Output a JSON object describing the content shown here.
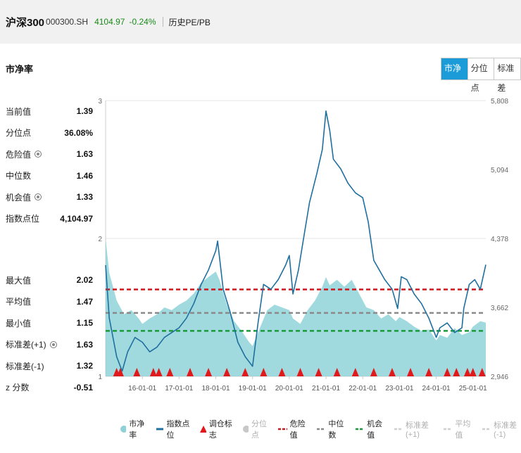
{
  "header": {
    "name": "沪深300",
    "code": "000300.SH",
    "price": "4104.97",
    "change": "-0.24%",
    "history_link": "历史PE/PB"
  },
  "section_title": "市净率",
  "tabs": [
    {
      "label": "市净率",
      "active": true
    },
    {
      "label": "分位点",
      "active": false
    },
    {
      "label": "标准差",
      "active": false
    }
  ],
  "stats_top": [
    {
      "label": "当前值",
      "value": "1.39",
      "info": false
    },
    {
      "label": "分位点",
      "value": "36.08%",
      "info": false
    },
    {
      "label": "危险值",
      "value": "1.63",
      "info": true
    },
    {
      "label": "中位数",
      "value": "1.46",
      "info": false
    },
    {
      "label": "机会值",
      "value": "1.33",
      "info": true
    },
    {
      "label": "指数点位",
      "value": "4,104.97",
      "info": false
    }
  ],
  "stats_bottom": [
    {
      "label": "最大值",
      "value": "2.02",
      "info": false
    },
    {
      "label": "平均值",
      "value": "1.47",
      "info": false
    },
    {
      "label": "最小值",
      "value": "1.15",
      "info": false
    },
    {
      "label": "标准差(+1)",
      "value": "1.63",
      "info": true
    },
    {
      "label": "标准差(-1)",
      "value": "1.32",
      "info": false
    },
    {
      "label": "z 分数",
      "value": "-0.51",
      "info": false
    }
  ],
  "legend": [
    {
      "label": "市净率",
      "kind": "dot",
      "color": "#8fd3d8",
      "active": true
    },
    {
      "label": "指数点位",
      "kind": "line",
      "color": "#1f6f9f",
      "active": true
    },
    {
      "label": "调仓标志",
      "kind": "triangle",
      "color": "#e0191c",
      "active": true
    },
    {
      "label": "分位点",
      "kind": "dot",
      "color": "#c8c8c8",
      "active": false
    },
    {
      "label": "危险值",
      "kind": "dash",
      "color": "#c9181e",
      "active": true
    },
    {
      "label": "中位数",
      "kind": "dash",
      "color": "#8a8a8a",
      "active": true
    },
    {
      "label": "机会值",
      "kind": "dash",
      "color": "#1a9a3c",
      "active": true
    },
    {
      "label": "标准差(+1)",
      "kind": "dash",
      "color": "#d0d0d0",
      "active": false
    },
    {
      "label": "平均值",
      "kind": "dash",
      "color": "#d0d0d0",
      "active": false
    },
    {
      "label": "标准差(-1)",
      "kind": "dash",
      "color": "#d0d0d0",
      "active": false
    }
  ],
  "chart_data": {
    "type": "area",
    "x_tick_labels": [
      "16-01-01",
      "17-01-01",
      "18-01-01",
      "19-01-01",
      "20-01-01",
      "21-01-01",
      "22-01-01",
      "23-01-01",
      "24-01-01",
      "25-01-01"
    ],
    "x_range": [
      2015.0,
      2025.35
    ],
    "left_axis": {
      "ticks": [
        "1",
        "2",
        "3"
      ],
      "range": [
        1,
        3
      ]
    },
    "right_axis": {
      "ticks": [
        "2,946",
        "3,662",
        "4,378",
        "5,094",
        "5,808"
      ],
      "range": [
        2946,
        5808
      ]
    },
    "reference_lines": [
      {
        "name": "危险值",
        "value": 1.63,
        "color": "#c9181e"
      },
      {
        "name": "中位数",
        "value": 1.46,
        "color": "#8a8a8a"
      },
      {
        "name": "机会值",
        "value": 1.33,
        "color": "#1a9a3c"
      }
    ],
    "series": [
      {
        "name": "市净率",
        "kind": "area",
        "color": "#8fd3d8",
        "x": [
          2015.0,
          2015.1,
          2015.3,
          2015.5,
          2015.7,
          2015.9,
          2016.0,
          2016.2,
          2016.4,
          2016.6,
          2016.8,
          2017.0,
          2017.2,
          2017.4,
          2017.6,
          2017.8,
          2018.0,
          2018.1,
          2018.3,
          2018.5,
          2018.7,
          2018.9,
          2019.0,
          2019.2,
          2019.4,
          2019.6,
          2019.8,
          2020.0,
          2020.1,
          2020.3,
          2020.5,
          2020.7,
          2020.9,
          2021.0,
          2021.1,
          2021.3,
          2021.5,
          2021.7,
          2021.9,
          2022.1,
          2022.3,
          2022.5,
          2022.7,
          2022.9,
          2023.0,
          2023.2,
          2023.4,
          2023.6,
          2023.8,
          2024.0,
          2024.1,
          2024.3,
          2024.5,
          2024.7,
          2024.9,
          2025.0,
          2025.2,
          2025.35
        ],
        "values": [
          2.0,
          1.75,
          1.55,
          1.45,
          1.48,
          1.42,
          1.38,
          1.42,
          1.45,
          1.5,
          1.48,
          1.52,
          1.55,
          1.6,
          1.68,
          1.72,
          1.76,
          1.7,
          1.52,
          1.4,
          1.33,
          1.25,
          1.22,
          1.35,
          1.48,
          1.52,
          1.5,
          1.48,
          1.42,
          1.38,
          1.48,
          1.55,
          1.65,
          1.72,
          1.66,
          1.7,
          1.65,
          1.7,
          1.6,
          1.5,
          1.48,
          1.42,
          1.45,
          1.4,
          1.43,
          1.4,
          1.36,
          1.33,
          1.34,
          1.26,
          1.3,
          1.28,
          1.35,
          1.3,
          1.32,
          1.36,
          1.4,
          1.39
        ]
      },
      {
        "name": "指数点位",
        "kind": "line",
        "color": "#1f6f9f",
        "x": [
          2015.0,
          2015.1,
          2015.3,
          2015.45,
          2015.6,
          2015.8,
          2016.0,
          2016.2,
          2016.4,
          2016.6,
          2016.8,
          2017.0,
          2017.2,
          2017.4,
          2017.6,
          2017.8,
          2018.0,
          2018.05,
          2018.2,
          2018.4,
          2018.6,
          2018.8,
          2019.0,
          2019.15,
          2019.3,
          2019.5,
          2019.7,
          2019.9,
          2020.0,
          2020.1,
          2020.25,
          2020.4,
          2020.55,
          2020.75,
          2020.9,
          2021.0,
          2021.1,
          2021.2,
          2021.4,
          2021.6,
          2021.8,
          2022.0,
          2022.15,
          2022.3,
          2022.45,
          2022.6,
          2022.8,
          2022.95,
          2023.05,
          2023.2,
          2023.4,
          2023.6,
          2023.8,
          2024.0,
          2024.1,
          2024.3,
          2024.5,
          2024.7,
          2024.75,
          2024.9,
          2025.05,
          2025.2,
          2025.35
        ],
        "values": [
          4100,
          3550,
          3150,
          3000,
          3200,
          3350,
          3300,
          3200,
          3250,
          3350,
          3400,
          3450,
          3550,
          3700,
          3900,
          4050,
          4250,
          4350,
          3850,
          3600,
          3300,
          3150,
          3050,
          3500,
          3900,
          3850,
          3950,
          4100,
          4200,
          3800,
          4050,
          4400,
          4750,
          5050,
          5300,
          5700,
          5500,
          5200,
          5100,
          4950,
          4850,
          4800,
          4550,
          4150,
          4050,
          3950,
          3850,
          3650,
          3980,
          3950,
          3800,
          3700,
          3550,
          3350,
          3450,
          3500,
          3400,
          3450,
          3650,
          3900,
          3950,
          3850,
          4105
        ]
      }
    ],
    "rebalance_markers_x": [
      2015.3,
      2015.4,
      2015.85,
      2016.3,
      2016.45,
      2016.75,
      2017.3,
      2017.8,
      2018.3,
      2018.8,
      2019.3,
      2019.8,
      2020.3,
      2020.8,
      2021.3,
      2021.8,
      2022.3,
      2022.8,
      2023.3,
      2023.8,
      2024.3,
      2024.55,
      2024.85,
      2025.0,
      2025.25
    ]
  }
}
